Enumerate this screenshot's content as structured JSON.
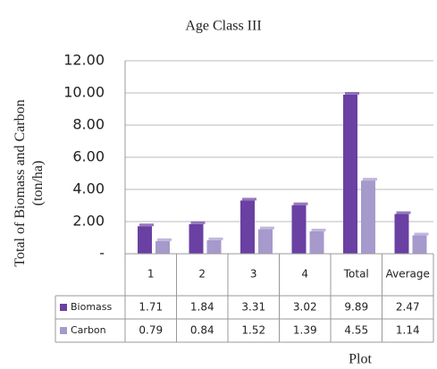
{
  "chart_data": {
    "type": "bar",
    "title": "Age Class III",
    "y_label": "Total of Biomass and Carbon (ton/ha)",
    "x_label": "Plot",
    "categories": [
      "1",
      "2",
      "3",
      "4",
      "Total",
      "Average"
    ],
    "series": [
      {
        "name": "Biomass",
        "color": "#6a40a3",
        "values": [
          1.71,
          1.84,
          3.31,
          3.02,
          9.89,
          2.47
        ]
      },
      {
        "name": "Carbon",
        "color": "#a699cc",
        "values": [
          0.79,
          0.84,
          1.52,
          1.39,
          4.55,
          1.14
        ]
      }
    ],
    "ylim": [
      0,
      12
    ],
    "yticks": [
      {
        "value": 0,
        "label": "-"
      },
      {
        "value": 2,
        "label": "2.00"
      },
      {
        "value": 4,
        "label": "4.00"
      },
      {
        "value": 6,
        "label": "6.00"
      },
      {
        "value": 8,
        "label": "8.00"
      },
      {
        "value": 10,
        "label": "10.00"
      },
      {
        "value": 12,
        "label": "12.00"
      }
    ],
    "grid": true,
    "data_table": true
  }
}
